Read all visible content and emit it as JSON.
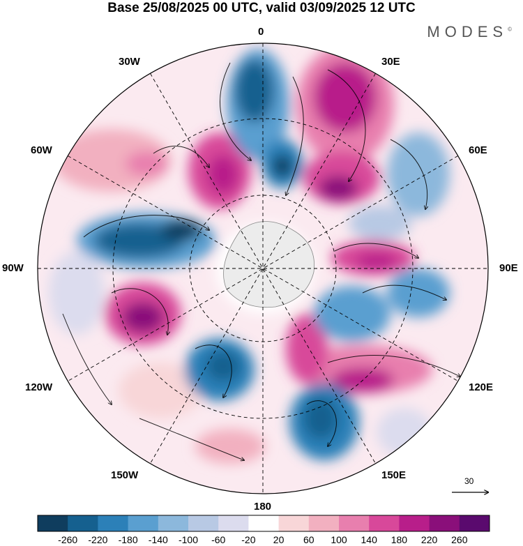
{
  "header": {
    "title": "Base 25/08/2025 00 UTC, valid 03/09/2025 12 UTC",
    "brand": "MODES",
    "brand_mark": "©"
  },
  "map": {
    "projection": "polar-stereographic",
    "meridian_labels": [
      "0",
      "30E",
      "60E",
      "90E",
      "120E",
      "150E",
      "180",
      "150W",
      "120W",
      "90W",
      "60W",
      "30W"
    ],
    "vector_reference": "30"
  },
  "colorbar": {
    "labels": [
      "-260",
      "-220",
      "-180",
      "-140",
      "-100",
      "-60",
      "-20",
      "20",
      "60",
      "100",
      "140",
      "180",
      "220",
      "260"
    ],
    "colors": [
      "#0f3d5e",
      "#15608f",
      "#2c80b8",
      "#5a9fd0",
      "#8cb8dc",
      "#b8c9e4",
      "#dcdcee",
      "#ffffff",
      "#f8d6d8",
      "#f2b0c0",
      "#e87fae",
      "#d8489a",
      "#b81e8a",
      "#8a0f7a",
      "#5a0a6e"
    ]
  }
}
